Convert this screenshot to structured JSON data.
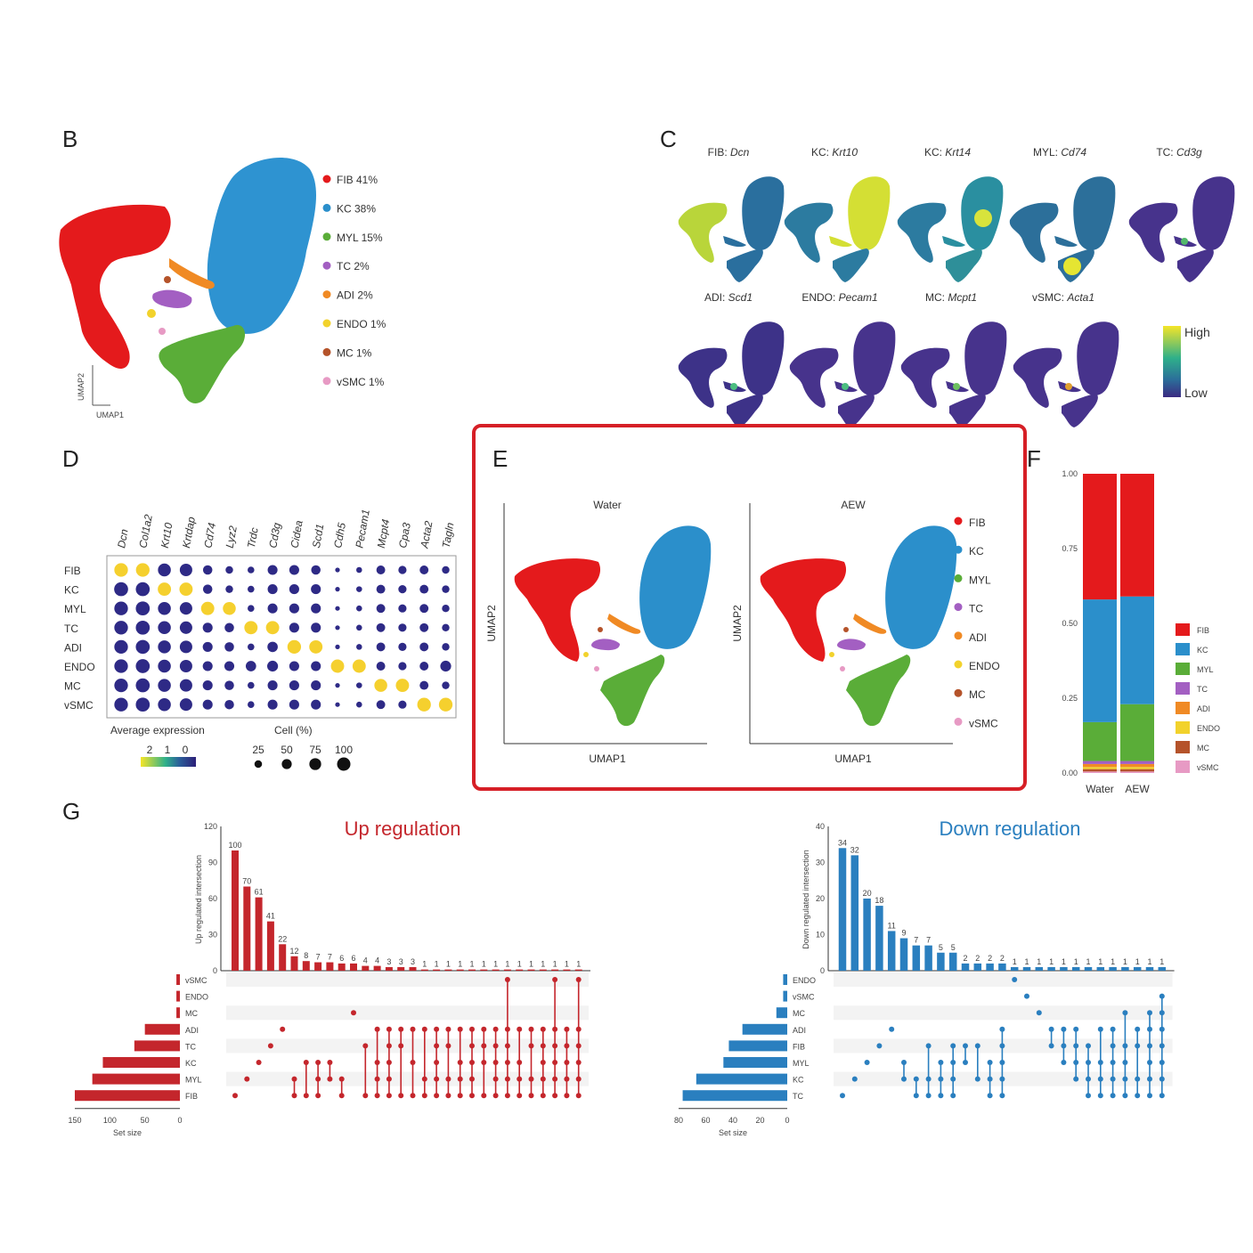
{
  "colors": {
    "FIB": "#e41a1c",
    "KC": "#2b8fcb",
    "MYL": "#5aad38",
    "TC": "#a35fc2",
    "ADI": "#f08a24",
    "ENDO": "#f2d22c",
    "MC": "#b5532a",
    "vSMC": "#e79ac4",
    "up": "#c4262c",
    "down": "#2a7fbf",
    "high": "#f5e528",
    "low": "#3b2a82",
    "box": "#d61f26"
  },
  "panel_labels": {
    "b": "B",
    "c": "C",
    "d": "D",
    "e": "E",
    "f": "F",
    "g": "G"
  },
  "panelB": {
    "axis_y": "UMAP2",
    "axis_x": "UMAP1",
    "legend": [
      "FIB 41%",
      "KC 38%",
      "MYL 15%",
      "TC 2%",
      "ADI 2%",
      "ENDO 1%",
      "MC 1%",
      "vSMC 1%"
    ]
  },
  "panelC": {
    "titles": [
      {
        "cell": "FIB: ",
        "gene": "Dcn"
      },
      {
        "cell": "KC: ",
        "gene": "Krt10"
      },
      {
        "cell": "KC: ",
        "gene": "Krt14"
      },
      {
        "cell": "MYL: ",
        "gene": "Cd74"
      },
      {
        "cell": "TC: ",
        "gene": "Cd3g"
      },
      {
        "cell": "ADI: ",
        "gene": "Scd1"
      },
      {
        "cell": "ENDO: ",
        "gene": "Pecam1"
      },
      {
        "cell": "MC: ",
        "gene": "Mcpt1"
      },
      {
        "cell": "vSMC: ",
        "gene": "Acta1"
      }
    ],
    "scale_high": "High",
    "scale_low": "Low"
  },
  "panelE": {
    "titles": [
      "Water",
      "AEW"
    ],
    "axis_x": "UMAP1",
    "axis_y": "UMAP2",
    "legend": [
      "FIB",
      "KC",
      "MYL",
      "TC",
      "ADI",
      "ENDO",
      "MC",
      "vSMC"
    ]
  },
  "chart_data": [
    {
      "type": "scatter",
      "name": "dot plot of marker genes",
      "genes": [
        "Dcn",
        "Col1a2",
        "Krt10",
        "Krtdap",
        "Cd74",
        "Lyz2",
        "Trdc",
        "Cd3g",
        "Cidea",
        "Scd1",
        "Cdh5",
        "Pecam1",
        "Mcpt4",
        "Cpa3",
        "Acta2",
        "Tagln"
      ],
      "celltypes": [
        "FIB",
        "KC",
        "MYL",
        "TC",
        "ADI",
        "ENDO",
        "MC",
        "vSMC"
      ],
      "legend_title_color": "Average expression",
      "color_ticks": [
        "2",
        "1",
        "0"
      ],
      "legend_title_size": "Cell (%)",
      "size_ticks": [
        "25",
        "50",
        "75",
        "100"
      ],
      "size_values": [
        25,
        50,
        75,
        100
      ],
      "expression": [
        [
          2,
          2,
          0,
          0,
          0,
          0,
          0,
          0,
          0,
          0,
          0,
          0,
          0,
          0,
          0,
          0
        ],
        [
          0,
          0,
          2,
          2,
          0,
          0,
          0,
          0,
          0,
          0,
          0,
          0,
          0,
          0,
          0,
          0
        ],
        [
          0,
          0,
          0,
          0,
          2,
          2,
          0,
          0,
          0,
          0,
          0,
          0,
          0,
          0,
          0,
          0
        ],
        [
          0,
          0,
          0,
          0,
          0,
          0,
          2,
          2,
          0,
          0,
          0,
          0,
          0,
          0,
          0,
          0
        ],
        [
          0,
          0,
          0,
          0,
          0,
          0,
          0,
          0,
          2,
          2,
          0,
          0,
          0,
          0,
          0,
          0
        ],
        [
          0,
          0,
          0,
          0,
          0,
          0,
          0,
          0,
          0,
          0,
          2,
          2,
          0,
          0,
          0,
          0
        ],
        [
          0,
          0,
          0,
          0,
          0,
          0,
          0,
          0,
          0,
          0,
          0,
          0,
          2,
          2,
          0,
          0
        ],
        [
          0,
          0,
          0,
          0,
          0,
          0,
          0,
          0,
          0,
          0,
          0,
          0,
          0,
          0,
          2,
          2
        ]
      ],
      "percent": [
        [
          85,
          85,
          75,
          70,
          35,
          20,
          15,
          40,
          40,
          35,
          5,
          10,
          30,
          25,
          30,
          20
        ],
        [
          90,
          90,
          80,
          80,
          35,
          20,
          15,
          40,
          40,
          40,
          5,
          10,
          30,
          25,
          30,
          20
        ],
        [
          85,
          90,
          75,
          70,
          80,
          75,
          15,
          40,
          40,
          40,
          5,
          10,
          30,
          25,
          30,
          20
        ],
        [
          85,
          90,
          75,
          70,
          40,
          35,
          80,
          80,
          40,
          40,
          5,
          10,
          30,
          25,
          30,
          20
        ],
        [
          85,
          90,
          75,
          70,
          40,
          35,
          15,
          45,
          85,
          80,
          5,
          10,
          30,
          25,
          30,
          20
        ],
        [
          85,
          90,
          75,
          70,
          40,
          40,
          45,
          50,
          40,
          40,
          80,
          80,
          30,
          25,
          30,
          50
        ],
        [
          85,
          90,
          75,
          70,
          40,
          35,
          15,
          40,
          40,
          40,
          5,
          10,
          75,
          80,
          30,
          20
        ],
        [
          85,
          90,
          75,
          70,
          40,
          35,
          15,
          40,
          40,
          40,
          5,
          10,
          30,
          25,
          85,
          85
        ]
      ]
    },
    {
      "type": "bar",
      "name": "cell proportion stacked bar",
      "categories": [
        "Water",
        "AEW"
      ],
      "yticks": [
        "0.00",
        "0.25",
        "0.50",
        "0.75",
        "1.00"
      ],
      "ylim": [
        0,
        1
      ],
      "series": [
        {
          "name": "vSMC",
          "values": [
            0.005,
            0.005
          ]
        },
        {
          "name": "MC",
          "values": [
            0.008,
            0.008
          ]
        },
        {
          "name": "ENDO",
          "values": [
            0.007,
            0.007
          ]
        },
        {
          "name": "ADI",
          "values": [
            0.01,
            0.01
          ]
        },
        {
          "name": "TC",
          "values": [
            0.01,
            0.01
          ]
        },
        {
          "name": "MYL",
          "values": [
            0.13,
            0.19
          ]
        },
        {
          "name": "KC",
          "values": [
            0.41,
            0.36
          ]
        },
        {
          "name": "FIB",
          "values": [
            0.42,
            0.41
          ]
        }
      ],
      "legend": [
        "FIB",
        "KC",
        "MYL",
        "TC",
        "ADI",
        "ENDO",
        "MC",
        "vSMC"
      ]
    },
    {
      "type": "bar",
      "name": "upset up regulation",
      "title": "Up regulation",
      "ylabel": "Up regulated intersection",
      "ylim": [
        0,
        120
      ],
      "yticks": [
        "0",
        "30",
        "60",
        "90",
        "120"
      ],
      "sets": [
        "vSMC",
        "ENDO",
        "MC",
        "ADI",
        "TC",
        "KC",
        "MYL",
        "FIB"
      ],
      "set_sizes": [
        5,
        5,
        5,
        50,
        65,
        110,
        125,
        150
      ],
      "set_xlabel": "Set size",
      "set_xticks": [
        "150",
        "100",
        "50",
        "0"
      ],
      "values": [
        100,
        70,
        61,
        41,
        22,
        12,
        8,
        7,
        7,
        6,
        6,
        4,
        4,
        3,
        3,
        3,
        1,
        1,
        1,
        1,
        1,
        1,
        1,
        1,
        1,
        1,
        1,
        1,
        1,
        1
      ],
      "value_labels": [
        "100",
        "70",
        "61",
        "41",
        "22",
        "12",
        "8",
        "7",
        "7",
        "6",
        "6",
        "4",
        "4",
        "3",
        "3",
        "3",
        "1",
        "1",
        "1",
        "1",
        "1",
        "1",
        "1",
        "1",
        "1",
        "1",
        "1",
        "1",
        "1",
        "1"
      ],
      "members": [
        [
          7
        ],
        [
          6
        ],
        [
          5
        ],
        [
          4
        ],
        [
          3
        ],
        [
          6,
          7
        ],
        [
          5,
          7
        ],
        [
          5,
          6,
          7
        ],
        [
          5,
          6
        ],
        [
          6,
          7
        ],
        [
          2
        ],
        [
          4,
          7
        ],
        [
          3,
          5,
          6,
          7
        ],
        [
          3,
          4,
          5,
          6,
          7
        ],
        [
          3,
          4,
          7
        ],
        [
          3,
          5,
          7
        ],
        [
          3,
          6,
          7
        ],
        [
          3,
          4,
          5,
          6,
          7
        ],
        [
          3,
          4,
          6,
          7
        ],
        [
          3,
          5,
          6,
          7
        ],
        [
          3,
          4,
          5,
          6,
          7
        ],
        [
          3,
          4,
          5,
          7
        ],
        [
          3,
          4,
          5,
          6,
          7
        ],
        [
          0,
          3,
          4,
          5,
          6,
          7
        ],
        [
          3,
          5,
          6,
          7
        ],
        [
          3,
          4,
          6,
          7
        ],
        [
          3,
          4,
          5,
          6,
          7
        ],
        [
          0,
          3,
          4,
          5,
          6,
          7
        ],
        [
          3,
          4,
          5,
          6,
          7
        ],
        [
          0,
          3,
          4,
          5,
          6,
          7
        ]
      ]
    },
    {
      "type": "bar",
      "name": "upset down regulation",
      "title": "Down regulation",
      "ylabel": "Down regulated intersection",
      "ylim": [
        0,
        40
      ],
      "yticks": [
        "0",
        "10",
        "20",
        "30",
        "40"
      ],
      "sets": [
        "ENDO",
        "vSMC",
        "MC",
        "ADI",
        "FIB",
        "MYL",
        "KC",
        "TC"
      ],
      "set_sizes": [
        3,
        3,
        8,
        33,
        43,
        47,
        67,
        77
      ],
      "set_xlabel": "Set size",
      "set_xticks": [
        "80",
        "60",
        "40",
        "20",
        "0"
      ],
      "values": [
        34,
        32,
        20,
        18,
        11,
        9,
        7,
        7,
        5,
        5,
        2,
        2,
        2,
        2,
        1,
        1,
        1,
        1,
        1,
        1,
        1,
        1,
        1,
        1,
        1,
        1,
        1
      ],
      "value_labels": [
        "34",
        "32",
        "20",
        "18",
        "11",
        "9",
        "7",
        "7",
        "5",
        "5",
        "2",
        "2",
        "2",
        "2",
        "1",
        "1",
        "1",
        "1",
        "1",
        "1",
        "1",
        "1",
        "1",
        "1",
        "1",
        "1",
        "1"
      ],
      "members": [
        [
          7
        ],
        [
          6
        ],
        [
          5
        ],
        [
          4
        ],
        [
          3
        ],
        [
          5,
          6
        ],
        [
          6,
          7
        ],
        [
          4,
          6,
          7
        ],
        [
          5,
          6,
          7
        ],
        [
          4,
          5,
          6,
          7
        ],
        [
          4,
          5
        ],
        [
          4,
          6
        ],
        [
          5,
          6,
          7
        ],
        [
          3,
          4,
          5,
          6,
          7
        ],
        [
          0
        ],
        [
          1
        ],
        [
          2
        ],
        [
          3,
          4
        ],
        [
          3,
          4,
          5
        ],
        [
          3,
          4,
          5,
          6
        ],
        [
          4,
          5,
          6,
          7
        ],
        [
          3,
          5,
          6,
          7
        ],
        [
          3,
          4,
          5,
          6,
          7
        ],
        [
          2,
          4,
          5,
          6,
          7
        ],
        [
          3,
          4,
          6,
          7
        ],
        [
          2,
          3,
          4,
          5,
          6,
          7
        ],
        [
          1,
          2,
          3,
          4,
          5,
          6,
          7
        ]
      ]
    }
  ]
}
